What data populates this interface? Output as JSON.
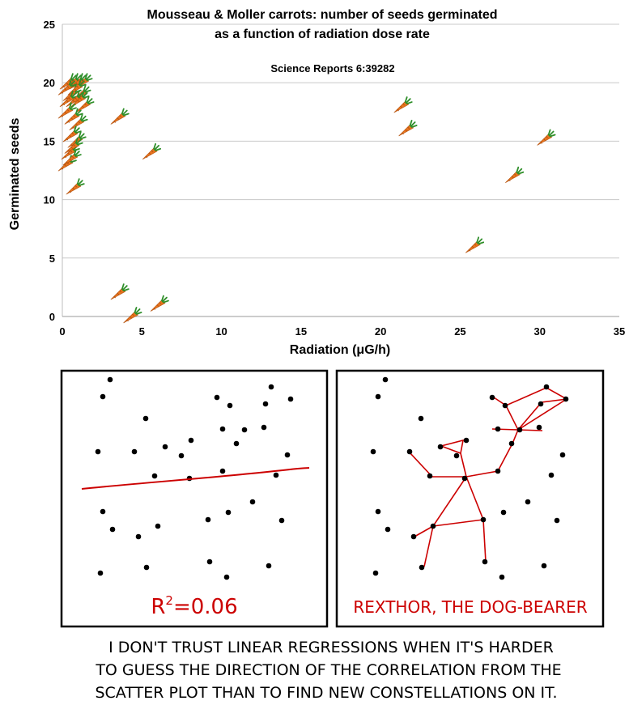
{
  "chart_data": {
    "type": "scatter",
    "title": "Mousseau & Moller carrots:  number of seeds germinated",
    "subtitle": "as a function of radiation dose rate",
    "annotation": "Science Reports 6:39282",
    "xlabel": "Radiation (μG/h)",
    "ylabel": "Germinated seeds",
    "xlim": [
      0,
      35
    ],
    "ylim": [
      0,
      25
    ],
    "x_ticks": [
      0,
      5,
      10,
      15,
      20,
      25,
      30,
      35
    ],
    "y_ticks": [
      0,
      5,
      10,
      15,
      20,
      25
    ],
    "grid": true,
    "marker": "carrot",
    "series": [
      {
        "name": "carrots",
        "points": [
          [
            0.3,
            20
          ],
          [
            0.6,
            20
          ],
          [
            0.9,
            20
          ],
          [
            1.2,
            20
          ],
          [
            0.2,
            19.5
          ],
          [
            0.5,
            19
          ],
          [
            0.8,
            19.5
          ],
          [
            1.1,
            19
          ],
          [
            0.3,
            18.5
          ],
          [
            0.7,
            18.5
          ],
          [
            1.0,
            18.5
          ],
          [
            1.3,
            18
          ],
          [
            0.2,
            17.5
          ],
          [
            0.6,
            17
          ],
          [
            0.9,
            16.5
          ],
          [
            0.5,
            15.5
          ],
          [
            0.8,
            15
          ],
          [
            0.4,
            14
          ],
          [
            0.6,
            14.5
          ],
          [
            0.2,
            13
          ],
          [
            0.5,
            13.5
          ],
          [
            0.7,
            11
          ],
          [
            3.5,
            17
          ],
          [
            5.5,
            14
          ],
          [
            3.5,
            2
          ],
          [
            4.3,
            0
          ],
          [
            6.0,
            1
          ],
          [
            21.3,
            18
          ],
          [
            21.6,
            16
          ],
          [
            30.3,
            15.2
          ],
          [
            28.3,
            12
          ],
          [
            25.8,
            6
          ]
        ]
      }
    ]
  },
  "comic": {
    "panel1_caption": "R²=0.06",
    "panel1_r": "R",
    "panel1_sup": "2",
    "panel1_rest": "=0.06",
    "panel2_caption": "REXTHOR, THE DOG-BEARER",
    "caption_line1": "I DON'T TRUST LINEAR REGRESSIONS WHEN IT'S HARDER",
    "caption_line2": "TO GUESS THE DIRECTION OF THE CORRELATION FROM THE",
    "caption_line3": "SCATTER PLOT THAN TO FIND NEW CONSTELLATIONS ON IT.",
    "accent_color": "#cc0000"
  }
}
